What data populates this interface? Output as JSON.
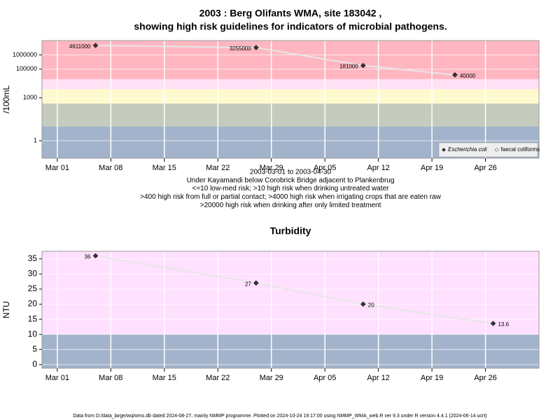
{
  "chart_data": [
    {
      "type": "line",
      "title": [
        "2003 : Berg Olifants WMA, site 183042 ,",
        "showing high risk guidelines for indicators of microbial pathogens."
      ],
      "y_label": "/100mL",
      "notes": [
        "2003-03-01 to 2003-04-30",
        "Under Kayamandi below Corobrick Bridge adjacent to Plankenbrug",
        "<=10 low-med risk; >10 high risk when drinking untreated water",
        ">400 high risk from full or partial contact; >4000 high risk when irrigating crops that are eaten raw",
        ">20000 high risk when drinking after only limited treatment"
      ],
      "x": [
        "2003-03-06",
        "2003-03-27",
        "2003-04-10",
        "2003-04-22"
      ],
      "series": [
        {
          "name": "Escherichia coli",
          "color": "#333333",
          "values": [
            4611000,
            3255000,
            181000,
            40000
          ]
        },
        {
          "name": "faecal coliforms",
          "color": "#ffffff",
          "values": [
            null,
            null,
            null,
            null
          ]
        }
      ],
      "log_y": true,
      "ylim": [
        0.06,
        10000000
      ],
      "yticks": [
        1,
        1000,
        100000,
        1000000
      ],
      "xlim": [
        "2003-02-27",
        "2003-05-03"
      ],
      "xticks": [
        {
          "value": "2003-03-01",
          "label": "Mar 01"
        },
        {
          "value": "2003-03-08",
          "label": "Mar 08"
        },
        {
          "value": "2003-03-15",
          "label": "Mar 15"
        },
        {
          "value": "2003-03-22",
          "label": "Mar 22"
        },
        {
          "value": "2003-03-29",
          "label": "Mar 29"
        },
        {
          "value": "2003-04-05",
          "label": "Apr 05"
        },
        {
          "value": "2003-04-12",
          "label": "Apr 12"
        },
        {
          "value": "2003-04-19",
          "label": "Apr 19"
        },
        {
          "value": "2003-04-26",
          "label": "Apr 26"
        }
      ],
      "band_limits": [
        10,
        400,
        4000,
        20000
      ],
      "band_colors": [
        "#a3b3cb",
        "#c6ccbd",
        "#fffacd",
        "#ffe0f5",
        "#ffb6c1"
      ],
      "line_color": "#e6e6e6",
      "grid": true,
      "legend": "bottom-right"
    },
    {
      "type": "line",
      "title": [
        "Turbidity"
      ],
      "y_label": "NTU",
      "x": [
        "2003-03-06",
        "2003-03-27",
        "2003-04-10",
        "2003-04-27"
      ],
      "series": [
        {
          "name": "Turbidity",
          "color": "#333333",
          "values": [
            36,
            27,
            20,
            13.6
          ]
        }
      ],
      "log_y": false,
      "ylim": [
        -1.2,
        37.5
      ],
      "yticks": [
        0,
        5,
        10,
        15,
        20,
        25,
        30,
        35
      ],
      "xlim": [
        "2003-02-27",
        "2003-05-03"
      ],
      "xticks": [
        {
          "value": "2003-03-01",
          "label": "Mar 01"
        },
        {
          "value": "2003-03-08",
          "label": "Mar 08"
        },
        {
          "value": "2003-03-15",
          "label": "Mar 15"
        },
        {
          "value": "2003-03-22",
          "label": "Mar 22"
        },
        {
          "value": "2003-03-29",
          "label": "Mar 29"
        },
        {
          "value": "2003-04-05",
          "label": "Apr 05"
        },
        {
          "value": "2003-04-12",
          "label": "Apr 12"
        },
        {
          "value": "2003-04-19",
          "label": "Apr 19"
        },
        {
          "value": "2003-04-26",
          "label": "Apr 26"
        }
      ],
      "band_limits": [
        10
      ],
      "band_colors": [
        "#a3b3cb",
        "#ffe0ff"
      ],
      "line_color": "#e6e6e6",
      "grid": true
    }
  ],
  "footer": "Data from D:/data_large/wq/wms.db dated 2024-08-27, mainly NMMP programme. Plotted on 2024-10-24 19:17:00 using NMMP_WMA_web.R ver 9.3 under R version 4.4.1 (2024-06-14 ucrt)"
}
